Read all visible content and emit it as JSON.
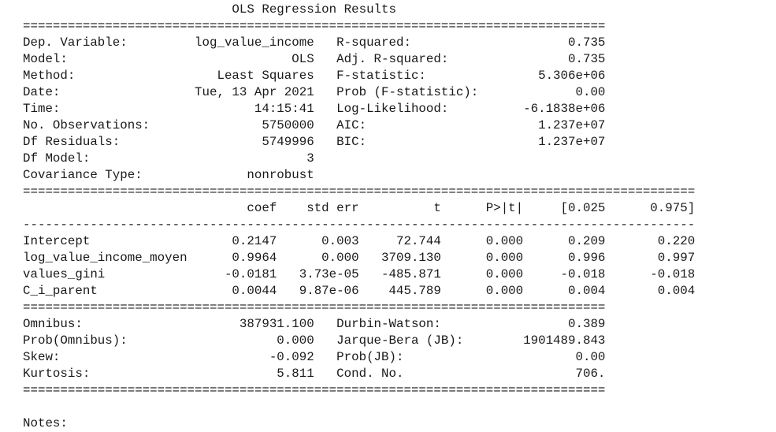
{
  "title": "OLS Regression Results",
  "rules": {
    "double_short": "==============================================================================",
    "double_long": "==========================================================================================",
    "single_long": "------------------------------------------------------------------------------------------"
  },
  "summary": {
    "left": [
      {
        "label": "Dep. Variable:",
        "value": "log_value_income"
      },
      {
        "label": "Model:",
        "value": "OLS"
      },
      {
        "label": "Method:",
        "value": "Least Squares"
      },
      {
        "label": "Date:",
        "value": "Tue, 13 Apr 2021"
      },
      {
        "label": "Time:",
        "value": "14:15:41"
      },
      {
        "label": "No. Observations:",
        "value": "5750000"
      },
      {
        "label": "Df Residuals:",
        "value": "5749996"
      },
      {
        "label": "Df Model:",
        "value": "3"
      },
      {
        "label": "Covariance Type:",
        "value": "nonrobust"
      }
    ],
    "right": [
      {
        "label": "R-squared:",
        "value": "0.735"
      },
      {
        "label": "Adj. R-squared:",
        "value": "0.735"
      },
      {
        "label": "F-statistic:",
        "value": "5.306e+06"
      },
      {
        "label": "Prob (F-statistic):",
        "value": "0.00"
      },
      {
        "label": "Log-Likelihood:",
        "value": "-6.1838e+06"
      },
      {
        "label": "AIC:",
        "value": "1.237e+07"
      },
      {
        "label": "BIC:",
        "value": "1.237e+07"
      }
    ]
  },
  "coefficients": {
    "headers": [
      "coef",
      "std err",
      "t",
      "P>|t|",
      "[0.025",
      "0.975]"
    ],
    "rows": [
      {
        "name": "Intercept",
        "values": [
          "0.2147",
          "0.003",
          "72.744",
          "0.000",
          "0.209",
          "0.220"
        ]
      },
      {
        "name": "log_value_income_moyen",
        "values": [
          "0.9964",
          "0.000",
          "3709.130",
          "0.000",
          "0.996",
          "0.997"
        ]
      },
      {
        "name": "values_gini",
        "values": [
          "-0.0181",
          "3.73e-05",
          "-485.871",
          "0.000",
          "-0.018",
          "-0.018"
        ]
      },
      {
        "name": "C_i_parent",
        "values": [
          "0.0044",
          "9.87e-06",
          "445.789",
          "0.000",
          "0.004",
          "0.004"
        ]
      }
    ]
  },
  "diagnostics": [
    {
      "left_label": "Omnibus:",
      "left_value": "387931.100",
      "right_label": "Durbin-Watson:",
      "right_value": "0.389"
    },
    {
      "left_label": "Prob(Omnibus):",
      "left_value": "0.000",
      "right_label": "Jarque-Bera (JB):",
      "right_value": "1901489.843"
    },
    {
      "left_label": "Skew:",
      "left_value": "-0.092",
      "right_label": "Prob(JB):",
      "right_value": "0.00"
    },
    {
      "left_label": "Kurtosis:",
      "left_value": "5.811",
      "right_label": "Cond. No.",
      "right_value": "706."
    }
  ],
  "notes_label": "Notes:"
}
